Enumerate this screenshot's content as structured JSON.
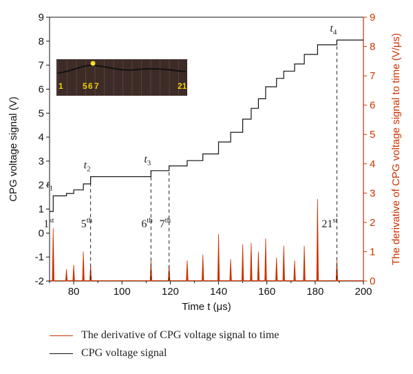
{
  "chart_data": {
    "type": "line",
    "xlabel": "Time t (μs)",
    "ylabel_left": "CPG voltage signal (V)",
    "ylabel_right": "The derivative of CPG voltage signal to time (V/μs)",
    "xlim": [
      70,
      200
    ],
    "ylim_left": [
      -2,
      9
    ],
    "ylim_right": [
      0,
      9
    ],
    "x_ticks": [
      80,
      100,
      120,
      140,
      160,
      180,
      200
    ],
    "y_ticks_left": [
      -2,
      -1,
      0,
      1,
      2,
      3,
      4,
      5,
      6,
      7,
      8,
      9
    ],
    "y_ticks_right": [
      0,
      1,
      2,
      3,
      4,
      5,
      6,
      7,
      8,
      9
    ],
    "right_axis_color": "#cc3300",
    "series": [
      {
        "name": "CPG voltage signal",
        "color": "#111111",
        "axis": "left",
        "x": [
          70,
          71.5,
          71.5,
          77,
          77,
          80,
          80,
          84,
          84,
          87,
          87,
          112,
          112,
          119.5,
          119.5,
          127,
          127,
          133.5,
          133.5,
          140,
          140,
          145,
          145,
          150,
          150,
          153.5,
          153.5,
          156.5,
          156.5,
          159.5,
          159.5,
          164,
          164,
          167,
          167,
          171.5,
          171.5,
          175.5,
          175.5,
          181,
          181,
          189,
          189,
          200
        ],
        "y": [
          0.9,
          0.9,
          1.55,
          1.55,
          1.65,
          1.65,
          1.8,
          1.8,
          2.05,
          2.05,
          2.35,
          2.35,
          2.6,
          2.6,
          2.8,
          2.8,
          3.02,
          3.02,
          3.3,
          3.3,
          3.8,
          3.8,
          4.2,
          4.2,
          4.75,
          4.75,
          5.2,
          5.2,
          5.6,
          5.6,
          6.1,
          6.1,
          6.45,
          6.45,
          6.75,
          6.75,
          7.05,
          7.05,
          7.45,
          7.45,
          7.85,
          7.85,
          8.05,
          8.05
        ]
      },
      {
        "name": "The derivative of CPG voltage signal to time",
        "color": "#cc3300",
        "axis": "right",
        "type": "spikes",
        "x": [
          71.5,
          77,
          80,
          84,
          87,
          112,
          119.5,
          127,
          133.5,
          140,
          145,
          150,
          153.5,
          156.5,
          159.5,
          164,
          167,
          171.5,
          175.5,
          181,
          189
        ],
        "y": [
          1.8,
          0.4,
          0.55,
          1.0,
          0.55,
          0.7,
          0.55,
          0.7,
          0.9,
          1.6,
          0.75,
          1.25,
          1.3,
          1.0,
          1.45,
          0.8,
          1.2,
          0.7,
          1.2,
          2.8,
          0.7
        ]
      }
    ],
    "annotations": {
      "time_markers": [
        {
          "label": "t",
          "sub": "1",
          "x": 71.5,
          "y": 1.55
        },
        {
          "label": "t",
          "sub": "2",
          "x": 87,
          "y": 2.35
        },
        {
          "label": "t",
          "sub": "3",
          "x": 112,
          "y": 2.6
        },
        {
          "label": "t",
          "sub": "4",
          "x": 189,
          "y": 8.05
        }
      ],
      "dashed_lines_x": [
        87,
        112,
        119.5,
        189
      ],
      "step_labels": [
        {
          "num": "1",
          "sup": "st",
          "x": 71.5
        },
        {
          "num": "5",
          "sup": "th",
          "x": 87
        },
        {
          "num": "6",
          "sup": "th",
          "x": 112
        },
        {
          "num": "7",
          "sup": "th",
          "x": 119.5
        },
        {
          "num": "21",
          "sup": "st",
          "x": 189
        }
      ]
    },
    "inset": {
      "labels": [
        "1",
        "5",
        "6",
        "7",
        "21"
      ],
      "label_color": "#f0d000"
    }
  },
  "legend": {
    "items": [
      {
        "label": "The derivative of CPG voltage signal to time",
        "color": "#cc3300"
      },
      {
        "label": "CPG voltage signal",
        "color": "#111111"
      }
    ]
  }
}
